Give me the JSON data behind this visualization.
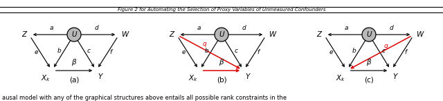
{
  "title": "Figure 2 for Automating the Selection of Proxy Variables of Unmeasured Confounders",
  "caption": "ausal model with any of the graphical structures above entails all possible rank constraints in the",
  "background": "#ffffff",
  "node_fill": "#b8b8b8",
  "node_edge": "#000000",
  "arrow_color": "#000000",
  "red_color": "#dd0000",
  "font_size": 7.5,
  "sub_label_size": 7.5,
  "edge_label_size": 6.5,
  "diagrams": [
    {
      "label": "(a)",
      "red_arrows": []
    },
    {
      "label": "(b)",
      "red_arrows": [
        "Z_to_Y",
        "beta_red"
      ]
    },
    {
      "label": "(c)",
      "red_arrows": [
        "W_to_Xk"
      ]
    }
  ]
}
